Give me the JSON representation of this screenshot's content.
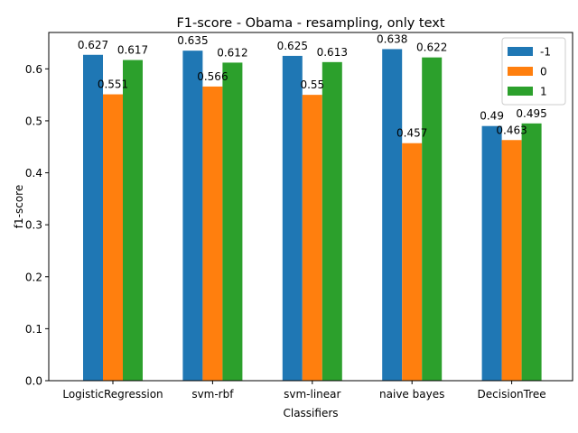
{
  "chart_data": {
    "type": "bar",
    "title": "F1-score - Obama - resampling, only text",
    "xlabel": "Classifiers",
    "ylabel": "f1-score",
    "categories": [
      "LogisticRegression",
      "svm-rbf",
      "svm-linear",
      "naive bayes",
      "DecisionTree"
    ],
    "series": [
      {
        "name": "-1",
        "color": "#1f77b4",
        "values": [
          0.627,
          0.635,
          0.625,
          0.638,
          0.49
        ],
        "labels": [
          "0.627",
          "0.635",
          "0.625",
          "0.638",
          "0.49"
        ]
      },
      {
        "name": "0",
        "color": "#ff7f0e",
        "values": [
          0.551,
          0.566,
          0.55,
          0.457,
          0.463
        ],
        "labels": [
          "0.551",
          "0.566",
          "0.55",
          "0.457",
          "0.463"
        ]
      },
      {
        "name": "1",
        "color": "#2ca02c",
        "values": [
          0.617,
          0.612,
          0.613,
          0.622,
          0.495
        ],
        "labels": [
          "0.617",
          "0.612",
          "0.613",
          "0.622",
          "0.495"
        ]
      }
    ],
    "ylim": [
      0,
      0.67
    ],
    "yticks": [
      0.0,
      0.1,
      0.2,
      0.3,
      0.4,
      0.5,
      0.6
    ],
    "ytick_labels": [
      "0.0",
      "0.1",
      "0.2",
      "0.3",
      "0.4",
      "0.5",
      "0.6"
    ],
    "grid": false,
    "legend_position": "top-right"
  }
}
